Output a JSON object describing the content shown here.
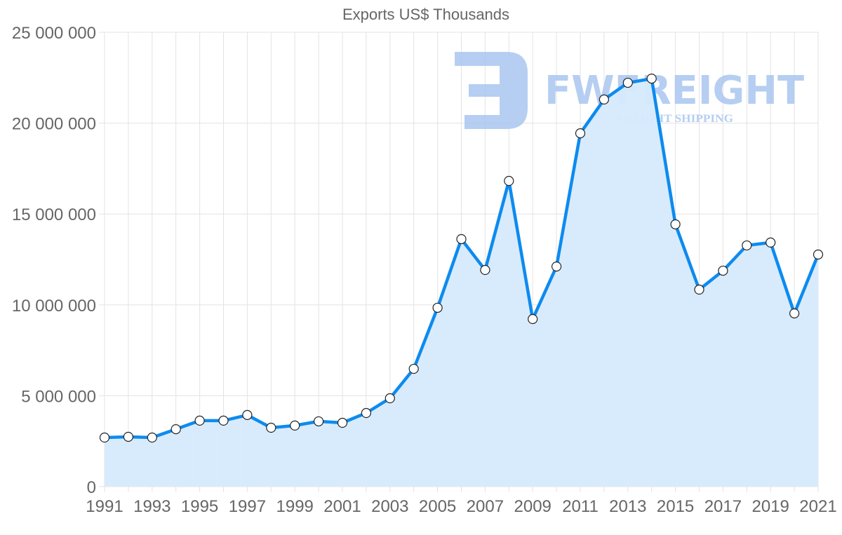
{
  "chart_data": {
    "type": "line",
    "title": "Exports US$ Thousands",
    "xlabel": "",
    "ylabel": "",
    "filled_area": true,
    "grid": true,
    "legend": "none",
    "ylim": [
      0,
      25000000
    ],
    "y_ticks": [
      0,
      5000000,
      10000000,
      15000000,
      20000000,
      25000000
    ],
    "y_tick_labels": [
      "0",
      "5 000 000",
      "10 000 000",
      "15 000 000",
      "20 000 000",
      "25 000 000"
    ],
    "x": [
      1991,
      1992,
      1993,
      1994,
      1995,
      1996,
      1997,
      1998,
      1999,
      2000,
      2001,
      2002,
      2003,
      2004,
      2005,
      2006,
      2007,
      2008,
      2009,
      2010,
      2011,
      2012,
      2013,
      2014,
      2015,
      2016,
      2017,
      2018,
      2019,
      2020,
      2021
    ],
    "x_tick_labels": [
      "1991",
      "1993",
      "1995",
      "1997",
      "1999",
      "2001",
      "2003",
      "2005",
      "2007",
      "2009",
      "2011",
      "2013",
      "2015",
      "2017",
      "2019",
      "2021"
    ],
    "series": [
      {
        "name": "Exports US$ Thousands",
        "values": [
          2700000,
          2740000,
          2700000,
          3160000,
          3630000,
          3630000,
          3940000,
          3240000,
          3360000,
          3590000,
          3510000,
          4050000,
          4860000,
          6480000,
          9840000,
          13620000,
          11920000,
          16820000,
          9220000,
          12110000,
          19440000,
          21300000,
          22220000,
          22450000,
          14430000,
          10840000,
          11880000,
          13270000,
          13430000,
          9530000,
          12770000
        ]
      }
    ]
  },
  "colors": {
    "line": "#0d8bef",
    "fill": "#d6eafc",
    "grid": "#e3e3e3",
    "text": "#666666",
    "watermark": "#a9c6f0"
  },
  "watermark": {
    "brand": "FWFREIGHT",
    "tagline": "FREIGHT SHIPPING"
  }
}
